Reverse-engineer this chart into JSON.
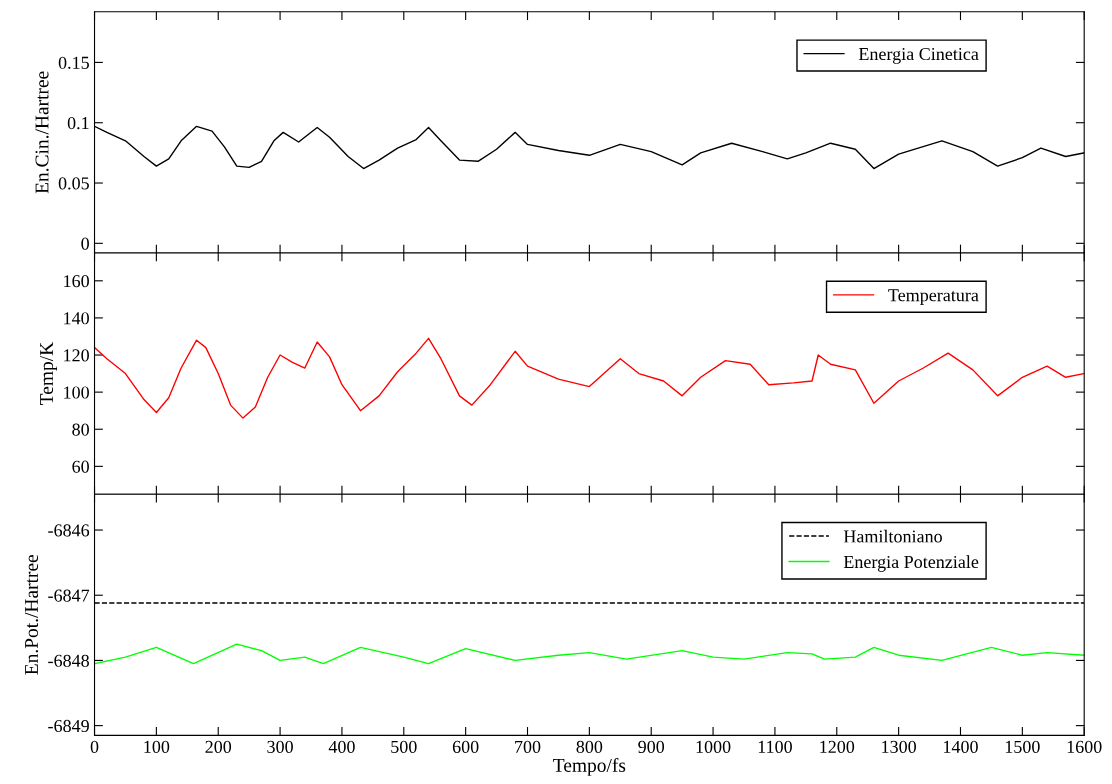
{
  "chart_data": [
    {
      "type": "line",
      "ylabel": "En.Cin./Hartree",
      "xlim": [
        0,
        1600
      ],
      "ylim": [
        -0.008,
        0.192
      ],
      "xticks": [
        0,
        100,
        200,
        300,
        400,
        500,
        600,
        700,
        800,
        900,
        1000,
        1100,
        1200,
        1300,
        1400,
        1500,
        1600
      ],
      "yticks": [
        0,
        0.05,
        0.1,
        0.15
      ],
      "tick_labels": "y",
      "legend": "top right",
      "grid": false,
      "series": [
        {
          "name": "Energia Cinetica",
          "color": "#000000",
          "x": [
            0,
            20,
            50,
            80,
            100,
            120,
            140,
            165,
            190,
            210,
            230,
            250,
            270,
            290,
            305,
            330,
            360,
            380,
            410,
            435,
            460,
            490,
            520,
            540,
            560,
            590,
            620,
            650,
            680,
            700,
            750,
            800,
            850,
            900,
            950,
            980,
            1030,
            1080,
            1120,
            1150,
            1190,
            1230,
            1260,
            1300,
            1370,
            1420,
            1460,
            1500,
            1530,
            1570,
            1600
          ],
          "values": [
            0.097,
            0.092,
            0.085,
            0.072,
            0.064,
            0.07,
            0.085,
            0.097,
            0.093,
            0.08,
            0.064,
            0.063,
            0.068,
            0.085,
            0.092,
            0.084,
            0.096,
            0.088,
            0.072,
            0.062,
            0.069,
            0.079,
            0.086,
            0.096,
            0.085,
            0.069,
            0.068,
            0.078,
            0.092,
            0.082,
            0.077,
            0.073,
            0.082,
            0.076,
            0.065,
            0.075,
            0.083,
            0.076,
            0.07,
            0.075,
            0.083,
            0.078,
            0.062,
            0.074,
            0.085,
            0.076,
            0.064,
            0.071,
            0.079,
            0.072,
            0.075
          ]
        }
      ]
    },
    {
      "type": "line",
      "ylabel": "Temp/K",
      "xlim": [
        0,
        1600
      ],
      "ylim": [
        45,
        175
      ],
      "xticks": [
        0,
        100,
        200,
        300,
        400,
        500,
        600,
        700,
        800,
        900,
        1000,
        1100,
        1200,
        1300,
        1400,
        1500,
        1600
      ],
      "yticks": [
        60,
        80,
        100,
        120,
        140,
        160
      ],
      "tick_labels": "y",
      "legend": "top right",
      "grid": false,
      "series": [
        {
          "name": "Temperatura",
          "color": "#ff0000",
          "x": [
            0,
            20,
            50,
            80,
            100,
            120,
            140,
            165,
            180,
            200,
            220,
            240,
            260,
            280,
            300,
            320,
            340,
            360,
            380,
            400,
            430,
            460,
            490,
            520,
            540,
            560,
            590,
            610,
            640,
            680,
            700,
            750,
            800,
            850,
            880,
            920,
            950,
            980,
            1020,
            1060,
            1090,
            1130,
            1160,
            1170,
            1190,
            1230,
            1260,
            1300,
            1340,
            1380,
            1420,
            1460,
            1500,
            1540,
            1570,
            1600
          ],
          "values": [
            124,
            118,
            110,
            96,
            89,
            97,
            113,
            128,
            124,
            110,
            93,
            86,
            92,
            108,
            120,
            116,
            113,
            127,
            119,
            104,
            90,
            98,
            111,
            121,
            129,
            118,
            98,
            93,
            104,
            122,
            114,
            107,
            103,
            118,
            110,
            106,
            98,
            108,
            117,
            115,
            104,
            105,
            106,
            120,
            115,
            112,
            94,
            106,
            113,
            121,
            112,
            98,
            108,
            114,
            108,
            110
          ]
        }
      ]
    },
    {
      "type": "line",
      "ylabel": "En.Pot./Hartree",
      "xlabel": "Tempo/fs",
      "xlim": [
        0,
        1600
      ],
      "ylim": [
        -6849.15,
        -6845.45
      ],
      "xticks": [
        0,
        100,
        200,
        300,
        400,
        500,
        600,
        700,
        800,
        900,
        1000,
        1100,
        1200,
        1300,
        1400,
        1500,
        1600
      ],
      "yticks": [
        -6849,
        -6848,
        -6847,
        -6846
      ],
      "legend": "top right",
      "grid": false,
      "series": [
        {
          "name": "Hamiltoniano",
          "color": "#000000",
          "line_style": "dashed",
          "x": [
            0,
            1600
          ],
          "values": [
            -6847.12,
            -6847.12
          ]
        },
        {
          "name": "Energia Potenziale",
          "color": "#00ff00",
          "x": [
            0,
            50,
            100,
            160,
            230,
            270,
            300,
            340,
            370,
            430,
            500,
            540,
            600,
            680,
            750,
            800,
            860,
            950,
            1000,
            1050,
            1120,
            1160,
            1180,
            1230,
            1260,
            1300,
            1370,
            1450,
            1500,
            1540,
            1600
          ],
          "values": [
            -6848.05,
            -6847.95,
            -6847.8,
            -6848.05,
            -6847.75,
            -6847.85,
            -6848.0,
            -6847.95,
            -6848.05,
            -6847.8,
            -6847.95,
            -6848.05,
            -6847.82,
            -6848.0,
            -6847.92,
            -6847.88,
            -6847.98,
            -6847.85,
            -6847.95,
            -6847.98,
            -6847.88,
            -6847.9,
            -6847.98,
            -6847.95,
            -6847.8,
            -6847.92,
            -6848.0,
            -6847.8,
            -6847.92,
            -6847.88,
            -6847.92
          ]
        }
      ]
    }
  ]
}
